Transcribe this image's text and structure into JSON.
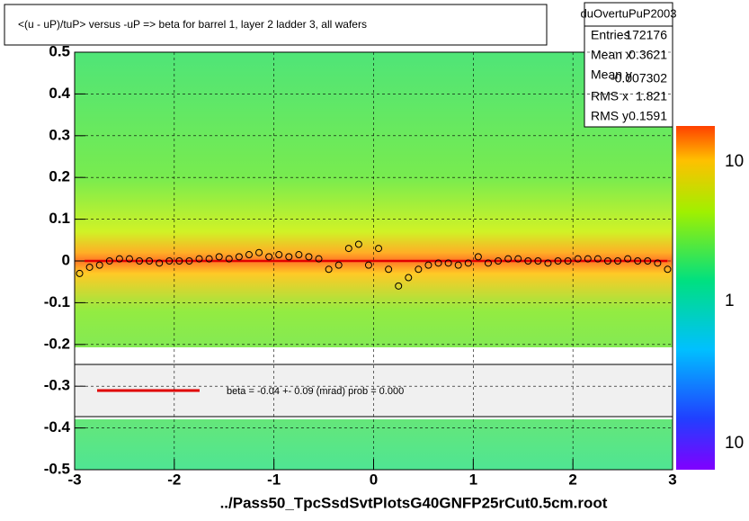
{
  "chart_data": {
    "type": "scatter",
    "title": "<(u - uP)/tuP>  versus  -uP => beta for barrel 1, layer 2 ladder 3, all wafers",
    "x_label": "../Pass50_TpcSsdSvtPlotsG40GNFP25rCut0.5cm.root",
    "xlim": [
      -3,
      3
    ],
    "ylim": [
      -0.5,
      0.5
    ],
    "xticks": [
      -3,
      -2,
      -1,
      0,
      1,
      2,
      3
    ],
    "yticks": [
      -0.5,
      -0.4,
      -0.3,
      -0.2,
      -0.1,
      0,
      0.1,
      0.2,
      0.3,
      0.4,
      0.5
    ],
    "grid": true,
    "series": [
      {
        "color": "#000000",
        "x": [
          -2.95,
          -2.85,
          -2.75,
          -2.65,
          -2.55,
          -2.45,
          -2.35,
          -2.25,
          -2.15,
          -2.05,
          -1.95,
          -1.85,
          -1.75,
          -1.65,
          -1.55,
          -1.45,
          -1.35,
          -1.25,
          -1.15,
          -1.05,
          -0.95,
          -0.85,
          -0.75,
          -0.65,
          -0.55,
          -0.45,
          -0.35,
          -0.25,
          -0.15,
          -0.05,
          0.05,
          0.15,
          0.25,
          0.35,
          0.45,
          0.55,
          0.65,
          0.75,
          0.85,
          0.95,
          1.05,
          1.15,
          1.25,
          1.35,
          1.45,
          1.55,
          1.65,
          1.75,
          1.85,
          1.95,
          2.05,
          2.15,
          2.25,
          2.35,
          2.45,
          2.55,
          2.65,
          2.75,
          2.85,
          2.95
        ],
        "values": [
          -0.03,
          -0.015,
          -0.01,
          0,
          0.005,
          0.005,
          0,
          0,
          -0.005,
          0,
          0,
          0,
          0.005,
          0.005,
          0.01,
          0.005,
          0.01,
          0.015,
          0.02,
          0.01,
          0.015,
          0.01,
          0.015,
          0.01,
          0.005,
          -0.02,
          -0.01,
          0.03,
          0.04,
          -0.01,
          0.03,
          -0.02,
          -0.06,
          -0.04,
          -0.02,
          -0.01,
          -0.005,
          -0.005,
          -0.01,
          -0.005,
          0.01,
          -0.005,
          0,
          0.005,
          0.005,
          0,
          0,
          -0.005,
          0,
          0,
          0.005,
          0.005,
          0.005,
          0,
          0,
          0.005,
          0,
          0,
          -0.005,
          -0.02
        ]
      }
    ],
    "fit": {
      "color": "#e00000",
      "x": [
        -2.9,
        2.95
      ],
      "y": [
        0,
        0
      ]
    },
    "legend_text": "beta =   -0.04 +-  0.09 (mrad) prob = 0.000",
    "stats": {
      "title": "duOvertuPuP2003",
      "rows": [
        [
          "Entries",
          "172176"
        ],
        [
          "Mean x",
          "0.3621"
        ],
        [
          "Mean y",
          "-0.007302"
        ],
        [
          "RMS x",
          "1.821"
        ],
        [
          "RMS y",
          "0.1591"
        ]
      ]
    },
    "zlabels": [
      "10",
      "1",
      "10"
    ]
  }
}
